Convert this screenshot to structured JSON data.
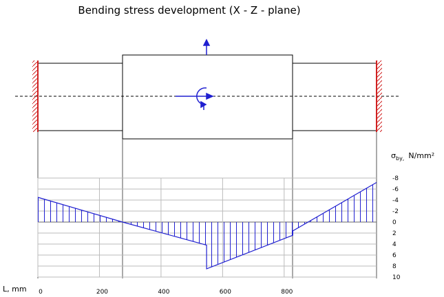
{
  "chart_data": {
    "type": "line",
    "title": "Bending stress development (X - Z - plane)",
    "x_label": "L, mm",
    "y_label": {
      "symbol": "σ",
      "subscript": "by,",
      "unit": "N/mm²"
    },
    "x": [
      0,
      275,
      548,
      548,
      828,
      828,
      1100
    ],
    "values": [
      -4.5,
      0,
      4.2,
      8.5,
      2.4,
      1.6,
      -7.2
    ],
    "color": "#1f1fd0",
    "xlim": [
      0,
      1100
    ],
    "xticks": [
      0,
      200,
      400,
      600,
      800
    ],
    "ylim": [
      10,
      -8
    ],
    "yticks": [
      -8,
      -6,
      -4,
      -2,
      0,
      2,
      4,
      6,
      8,
      10
    ],
    "grid": true,
    "hatched": true
  }
}
